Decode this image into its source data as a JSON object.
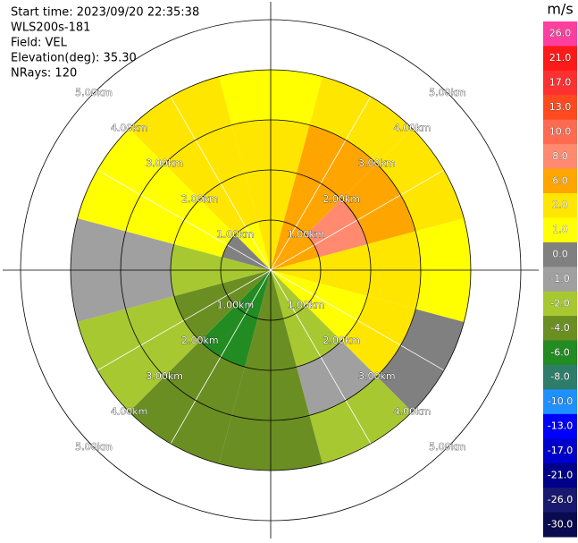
{
  "chart_data": {
    "type": "ppi",
    "header": [
      "Start time: 2023/09/20 22:35:38",
      "WLS200s-181",
      "Field: VEL",
      "Elevation(deg): 35.30",
      "NRays: 120"
    ],
    "range_rings": [
      {
        "value": 1,
        "label": "1.00km"
      },
      {
        "value": 2,
        "label": "2.00km"
      },
      {
        "value": 3,
        "label": "3.00km"
      },
      {
        "value": 4,
        "label": "4.00km"
      },
      {
        "value": 5,
        "label": "5.00km"
      }
    ],
    "field": {
      "azimuths": [
        0,
        30,
        60,
        90,
        120,
        150,
        180,
        210,
        240,
        270,
        300,
        330
      ],
      "range_edges": [
        0,
        1,
        2,
        3,
        4
      ],
      "values": [
        [
          2,
          2,
          2,
          1
        ],
        [
          6,
          6,
          4,
          2
        ],
        [
          6,
          8,
          6,
          2
        ],
        [
          2,
          2,
          2,
          1
        ],
        [
          1,
          1,
          2,
          0
        ],
        [
          -2,
          -2,
          -1,
          -2
        ],
        [
          -4,
          -4,
          -4,
          -4
        ],
        [
          -6,
          -6,
          -4,
          -4
        ],
        [
          -4,
          -4,
          -2,
          -2
        ],
        [
          -2,
          -2,
          -1,
          -1
        ],
        [
          0,
          1,
          1,
          1
        ],
        [
          1,
          2,
          2,
          2
        ]
      ]
    },
    "colorbar": {
      "title": "m/s",
      "ticks": [
        {
          "value": 26,
          "label": "26.0"
        },
        {
          "value": 21,
          "label": "21.0"
        },
        {
          "value": 17,
          "label": "17.0"
        },
        {
          "value": 13,
          "label": "13.0"
        },
        {
          "value": 10,
          "label": "10.0"
        },
        {
          "value": 8,
          "label": "8.0"
        },
        {
          "value": 6,
          "label": "6.0"
        },
        {
          "value": 2,
          "label": "2.0"
        },
        {
          "value": 1,
          "label": "1.0"
        },
        {
          "value": 0,
          "label": "0.0"
        },
        {
          "value": -1,
          "label": "-1.0"
        },
        {
          "value": -2,
          "label": "-2.0"
        },
        {
          "value": -4,
          "label": "-4.0"
        },
        {
          "value": -6,
          "label": "-6.0"
        },
        {
          "value": -8,
          "label": "-8.0"
        },
        {
          "value": -10,
          "label": "-10.0"
        },
        {
          "value": -13,
          "label": "-13.0"
        },
        {
          "value": -17,
          "label": "-17.0"
        },
        {
          "value": -21,
          "label": "-21.0"
        },
        {
          "value": -26,
          "label": "-26.0"
        },
        {
          "value": -30,
          "label": "-30.0"
        }
      ],
      "colors": [
        "#ff3fa0",
        "#ff1a1a",
        "#ff3030",
        "#ff4a20",
        "#ff6a50",
        "#ff8a70",
        "#ffa500",
        "#ffe600",
        "#ffff00",
        "#808080",
        "#a0a0a0",
        "#a8c832",
        "#6b8e23",
        "#228b22",
        "#2e7d6b",
        "#1e90ff",
        "#0000ff",
        "#0000cd",
        "#00008b",
        "#191970",
        "#0a0a50"
      ]
    }
  }
}
